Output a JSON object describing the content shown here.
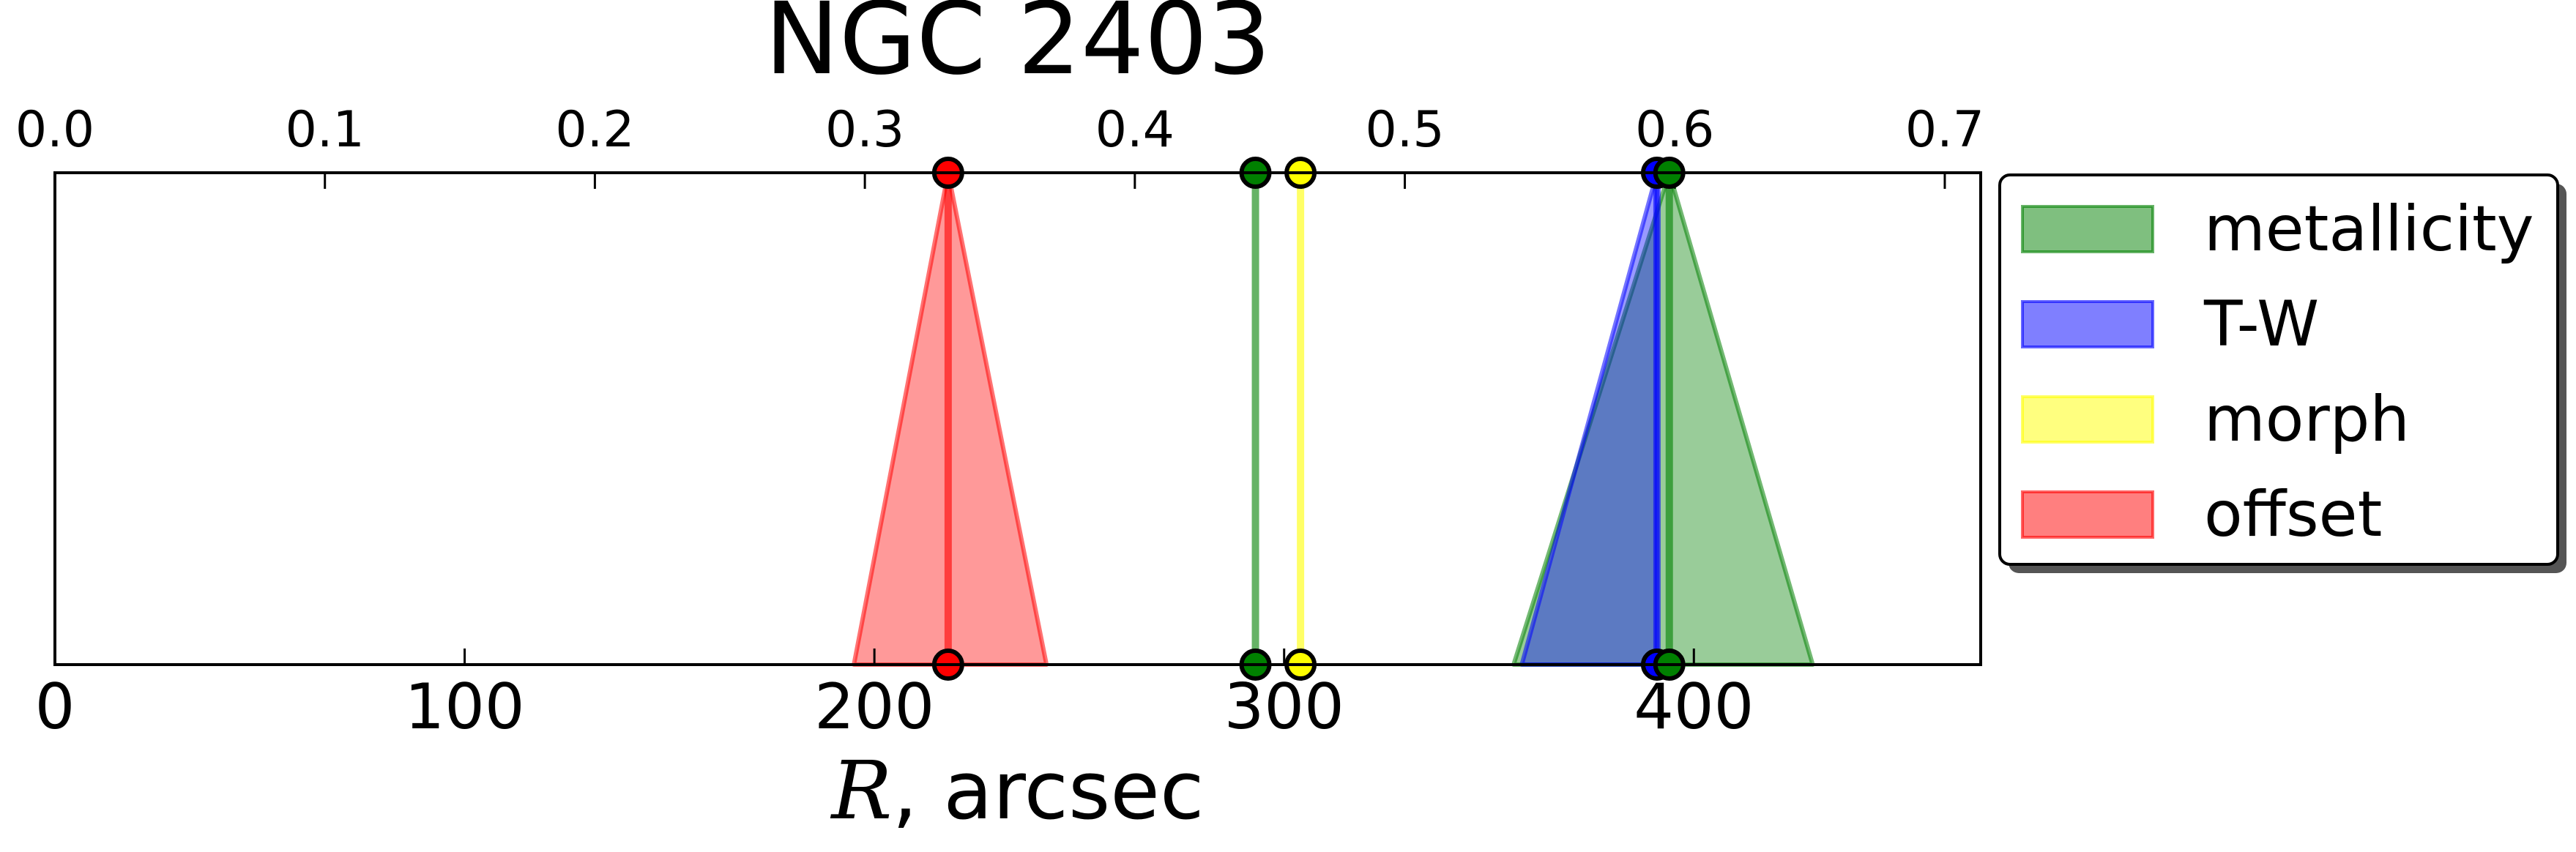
{
  "chart_data": {
    "type": "area",
    "title": "NGC 2403",
    "xlabel_italic": "R",
    "xlabel_rest": ", arcsec",
    "xlim": [
      0,
      470
    ],
    "x_ticks": [
      0,
      100,
      200,
      300,
      400
    ],
    "x_tick_labels": [
      "0",
      "100",
      "200",
      "300",
      "400"
    ],
    "top_axis": {
      "xlim": [
        0,
        0.7133
      ],
      "ticks": [
        0.0,
        0.1,
        0.2,
        0.3,
        0.4,
        0.5,
        0.6,
        0.7
      ],
      "tick_labels": [
        "0.0",
        "0.1",
        "0.2",
        "0.3",
        "0.4",
        "0.5",
        "0.6",
        "0.7"
      ]
    },
    "legend_position": "right",
    "series": [
      {
        "name": "metallicity",
        "color": "#008000",
        "center": 394,
        "range": [
          356,
          429
        ],
        "top": 394
      },
      {
        "name": "T-W",
        "color": "#0000ff",
        "center": 391,
        "range": [
          358,
          391
        ],
        "top": 391
      },
      {
        "name": "morph",
        "color": "#ffff00",
        "center": 304,
        "range": [
          304,
          304
        ],
        "top": 304
      },
      {
        "name": "offset",
        "color": "#ff0000",
        "center": 218,
        "range": [
          195,
          242
        ],
        "top": 218
      }
    ],
    "extra_lines": [
      {
        "x": 293,
        "color": "#008000"
      }
    ]
  }
}
